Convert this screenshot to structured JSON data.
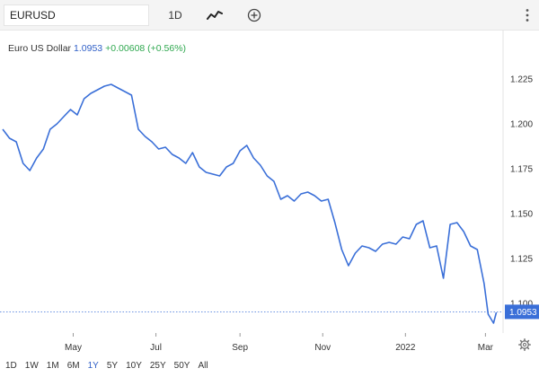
{
  "toolbar": {
    "symbol": "EURUSD",
    "interval": "1D",
    "charttype_icon": "line-chart-icon",
    "add_icon": "plus-circle-icon",
    "menu_icon": "vertical-dots-icon"
  },
  "header": {
    "name": "Euro US Dollar",
    "last": "1.0953",
    "change": "+0.00608 (+0.56%)"
  },
  "colors": {
    "line": "#3a6fd8",
    "price_tag": "#3a6fd8",
    "change_up": "#2fa84f",
    "toolbar_bg": "#f4f4f4"
  },
  "ranges": {
    "items": [
      "1D",
      "1W",
      "1M",
      "6M",
      "1Y",
      "5Y",
      "10Y",
      "25Y",
      "50Y",
      "All"
    ],
    "active": "1Y"
  },
  "settings_icon": "gear-icon",
  "chart_data": {
    "type": "line",
    "series": [
      {
        "x": [
          "2021-03-10",
          "2021-03-15",
          "2021-03-20",
          "2021-03-25",
          "2021-03-30",
          "2021-04-04",
          "2021-04-09",
          "2021-04-14",
          "2021-04-19",
          "2021-04-24",
          "2021-04-29",
          "2021-05-04",
          "2021-05-09",
          "2021-05-14",
          "2021-05-19",
          "2021-05-24",
          "2021-05-29",
          "2021-06-03",
          "2021-06-08",
          "2021-06-13",
          "2021-06-18",
          "2021-06-23",
          "2021-06-28",
          "2021-07-03",
          "2021-07-08",
          "2021-07-13",
          "2021-07-18",
          "2021-07-23",
          "2021-07-28",
          "2021-08-02",
          "2021-08-07",
          "2021-08-12",
          "2021-08-17",
          "2021-08-22",
          "2021-08-27",
          "2021-09-01",
          "2021-09-06",
          "2021-09-11",
          "2021-09-16",
          "2021-09-21",
          "2021-09-26",
          "2021-10-01",
          "2021-10-06",
          "2021-10-11",
          "2021-10-16",
          "2021-10-21",
          "2021-10-26",
          "2021-10-31",
          "2021-11-05",
          "2021-11-10",
          "2021-11-15",
          "2021-11-20",
          "2021-11-25",
          "2021-11-30",
          "2021-12-05",
          "2021-12-10",
          "2021-12-15",
          "2021-12-20",
          "2021-12-25",
          "2021-12-30",
          "2022-01-04",
          "2022-01-09",
          "2022-01-14",
          "2022-01-19",
          "2022-01-24",
          "2022-01-29",
          "2022-02-03",
          "2022-02-08",
          "2022-02-13",
          "2022-02-18",
          "2022-02-23",
          "2022-02-28",
          "2022-03-03",
          "2022-03-07",
          "2022-03-09"
        ],
        "y": [
          1.197,
          1.192,
          1.19,
          1.178,
          1.174,
          1.181,
          1.186,
          1.197,
          1.2,
          1.204,
          1.208,
          1.205,
          1.214,
          1.217,
          1.219,
          1.221,
          1.222,
          1.22,
          1.218,
          1.216,
          1.197,
          1.193,
          1.19,
          1.186,
          1.187,
          1.183,
          1.181,
          1.178,
          1.184,
          1.176,
          1.173,
          1.172,
          1.171,
          1.176,
          1.178,
          1.185,
          1.188,
          1.181,
          1.177,
          1.171,
          1.168,
          1.158,
          1.16,
          1.157,
          1.161,
          1.162,
          1.16,
          1.157,
          1.158,
          1.145,
          1.13,
          1.121,
          1.128,
          1.132,
          1.131,
          1.129,
          1.133,
          1.134,
          1.133,
          1.137,
          1.136,
          1.144,
          1.146,
          1.131,
          1.132,
          1.114,
          1.144,
          1.145,
          1.14,
          1.132,
          1.13,
          1.111,
          1.094,
          1.089,
          1.095
        ]
      }
    ],
    "x_ticks": [
      "May",
      "Jul",
      "Sep",
      "Nov",
      "2022",
      "Mar"
    ],
    "y_ticks": [
      "1.100",
      "1.125",
      "1.150",
      "1.175",
      "1.200",
      "1.225"
    ],
    "ylim": [
      1.085,
      1.236
    ],
    "xlim": [
      "2021-03-08",
      "2022-03-14"
    ],
    "last_price_label": "1.0953",
    "grid": false,
    "legend": "none"
  }
}
